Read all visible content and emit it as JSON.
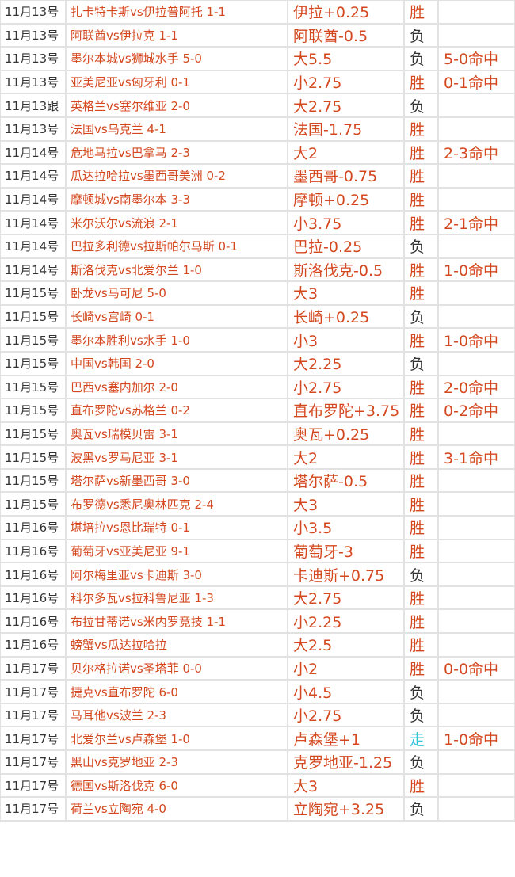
{
  "colors": {
    "win": "#d4481f",
    "loss": "#333333",
    "push": "#33c3d8",
    "text": "#d4481f",
    "date": "#333333"
  },
  "rows": [
    {
      "date": "11月13号",
      "match": "扎卡特卡斯vs伊拉普阿托  1-1",
      "pick": "伊拉+0.25",
      "result": "胜",
      "hit": ""
    },
    {
      "date": "11月13号",
      "match": "阿联酋vs伊拉克  1-1",
      "pick": "阿联酋-0.5",
      "result": "负",
      "hit": ""
    },
    {
      "date": "11月13号",
      "match": "墨尔本城vs狮城水手  5-0",
      "pick": "大5.5",
      "result": "负",
      "hit": "5-0命中"
    },
    {
      "date": "11月13号",
      "match": "亚美尼亚vs匈牙利  0-1",
      "pick": "小2.75",
      "result": "胜",
      "hit": "0-1命中"
    },
    {
      "date": "11月13跟",
      "match": "英格兰vs塞尔维亚  2-0",
      "pick": "大2.75",
      "result": "负",
      "hit": ""
    },
    {
      "date": "11月13号",
      "match": "法国vs乌克兰  4-1",
      "pick": "法国-1.75",
      "result": "胜",
      "hit": ""
    },
    {
      "date": "11月14号",
      "match": "危地马拉vs巴拿马  2-3",
      "pick": "大2",
      "result": "胜",
      "hit": "2-3命中"
    },
    {
      "date": "11月14号",
      "match": "瓜达拉哈拉vs墨西哥美洲  0-2",
      "pick": "墨西哥-0.75",
      "result": "胜",
      "hit": ""
    },
    {
      "date": "11月14号",
      "match": "摩顿城vs南墨尔本  3-3",
      "pick": "摩顿+0.25",
      "result": "胜",
      "hit": ""
    },
    {
      "date": "11月14号",
      "match": "米尔沃尔vs流浪  2-1",
      "pick": "小3.75",
      "result": "胜",
      "hit": "2-1命中"
    },
    {
      "date": "11月14号",
      "match": "巴拉多利德vs拉斯帕尔马斯 0-1",
      "pick": "巴拉-0.25",
      "result": "负",
      "hit": ""
    },
    {
      "date": "11月14号",
      "match": "斯洛伐克vs北爱尔兰  1-0",
      "pick": "斯洛伐克-0.5",
      "result": "胜",
      "hit": "1-0命中"
    },
    {
      "date": "11月15号",
      "match": "卧龙vs马可尼    5-0",
      "pick": "大3",
      "result": "胜",
      "hit": ""
    },
    {
      "date": "11月15号",
      "match": "长崎vs宫崎  0-1",
      "pick": "长崎+0.25",
      "result": "负",
      "hit": ""
    },
    {
      "date": "11月15号",
      "match": "墨尔本胜利vs水手  1-0",
      "pick": "小3",
      "result": "胜",
      "hit": "1-0命中"
    },
    {
      "date": "11月15号",
      "match": "中国vs韩国  2-0",
      "pick": "大2.25",
      "result": "负",
      "hit": ""
    },
    {
      "date": "11月15号",
      "match": "巴西vs塞内加尔  2-0",
      "pick": "小2.75",
      "result": "胜",
      "hit": "2-0命中"
    },
    {
      "date": "11月15号",
      "match": "直布罗陀vs苏格兰  0-2",
      "pick": "直布罗陀+3.75",
      "result": "胜",
      "hit": "0-2命中"
    },
    {
      "date": "11月15号",
      "match": "奥瓦vs瑞模贝雷  3-1",
      "pick": "奥瓦+0.25",
      "result": "胜",
      "hit": ""
    },
    {
      "date": "11月15号",
      "match": "波黑vs罗马尼亚  3-1",
      "pick": "大2",
      "result": "胜",
      "hit": "3-1命中"
    },
    {
      "date": "11月15号",
      "match": "塔尔萨vs新墨西哥  3-0",
      "pick": "塔尔萨-0.5",
      "result": "胜",
      "hit": ""
    },
    {
      "date": "11月15号",
      "match": "布罗德vs悉尼奥林匹克  2-4",
      "pick": "大3",
      "result": "胜",
      "hit": ""
    },
    {
      "date": "11月16号",
      "match": "堪培拉vs恩比瑞特  0-1",
      "pick": "小3.5",
      "result": "胜",
      "hit": ""
    },
    {
      "date": "11月16号",
      "match": "葡萄牙vs亚美尼亚    9-1",
      "pick": "葡萄牙-3",
      "result": "胜",
      "hit": ""
    },
    {
      "date": "11月16号",
      "match": "阿尔梅里亚vs卡迪斯    3-0",
      "pick": "卡迪斯+0.75",
      "result": "负",
      "hit": ""
    },
    {
      "date": "11月16号",
      "match": "科尔多瓦vs拉科鲁尼亚  1-3",
      "pick": "大2.75",
      "result": "胜",
      "hit": ""
    },
    {
      "date": "11月16号",
      "match": "布拉甘蒂诺vs米内罗竞技  1-1",
      "pick": "小2.25",
      "result": "胜",
      "hit": ""
    },
    {
      "date": "11月16号",
      "match": "螃蟹vs瓜达拉哈拉",
      "pick": "大2.5",
      "result": "胜",
      "hit": ""
    },
    {
      "date": "11月17号",
      "match": "贝尔格拉诺vs圣塔菲  0-0",
      "pick": "小2",
      "result": "胜",
      "hit": "0-0命中"
    },
    {
      "date": "11月17号",
      "match": "捷克vs直布罗陀  6-0",
      "pick": "小4.5",
      "result": "负",
      "hit": ""
    },
    {
      "date": "11月17号",
      "match": "马耳他vs波兰  2-3",
      "pick": "小2.75",
      "result": "负",
      "hit": ""
    },
    {
      "date": "11月17号",
      "match": "北爱尔兰vs卢森堡  1-0",
      "pick": "卢森堡+1",
      "result": "走",
      "hit": "1-0命中"
    },
    {
      "date": "11月17号",
      "match": "黑山vs克罗地亚  2-3",
      "pick": "克罗地亚-1.25",
      "result": "负",
      "hit": ""
    },
    {
      "date": "11月17号",
      "match": "德国vs斯洛伐克  6-0",
      "pick": "大3",
      "result": "胜",
      "hit": ""
    },
    {
      "date": "11月17号",
      "match": "荷兰vs立陶宛  4-0",
      "pick": "立陶宛+3.25",
      "result": "负",
      "hit": ""
    }
  ]
}
